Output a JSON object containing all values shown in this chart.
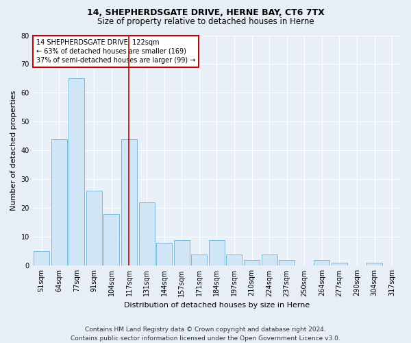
{
  "title1": "14, SHEPHERDSGATE DRIVE, HERNE BAY, CT6 7TX",
  "title2": "Size of property relative to detached houses in Herne",
  "xlabel": "Distribution of detached houses by size in Herne",
  "ylabel": "Number of detached properties",
  "categories": [
    "51sqm",
    "64sqm",
    "77sqm",
    "91sqm",
    "104sqm",
    "117sqm",
    "131sqm",
    "144sqm",
    "157sqm",
    "171sqm",
    "184sqm",
    "197sqm",
    "210sqm",
    "224sqm",
    "237sqm",
    "250sqm",
    "264sqm",
    "277sqm",
    "290sqm",
    "304sqm",
    "317sqm"
  ],
  "values": [
    5,
    44,
    65,
    26,
    18,
    44,
    22,
    8,
    9,
    4,
    9,
    4,
    2,
    4,
    2,
    0,
    2,
    1,
    0,
    1,
    0
  ],
  "bar_color": "#d0e5f5",
  "bar_edge_color": "#7ab8d8",
  "vline_pos": 5,
  "vline_color": "#cc0000",
  "annotation_line1": "14 SHEPHERDSGATE DRIVE: 122sqm",
  "annotation_line2": "← 63% of detached houses are smaller (169)",
  "annotation_line3": "37% of semi-detached houses are larger (99) →",
  "annotation_box_color": "#cc0000",
  "ylim": [
    0,
    80
  ],
  "yticks": [
    0,
    10,
    20,
    30,
    40,
    50,
    60,
    70,
    80
  ],
  "footer1": "Contains HM Land Registry data © Crown copyright and database right 2024.",
  "footer2": "Contains public sector information licensed under the Open Government Licence v3.0.",
  "bg_color": "#e8eef5",
  "plot_bg_color": "#eaf0f7",
  "grid_color": "#ffffff",
  "title1_fontsize": 9,
  "title2_fontsize": 8.5,
  "axis_label_fontsize": 8,
  "tick_fontsize": 7,
  "annotation_fontsize": 7,
  "footer_fontsize": 6.5
}
